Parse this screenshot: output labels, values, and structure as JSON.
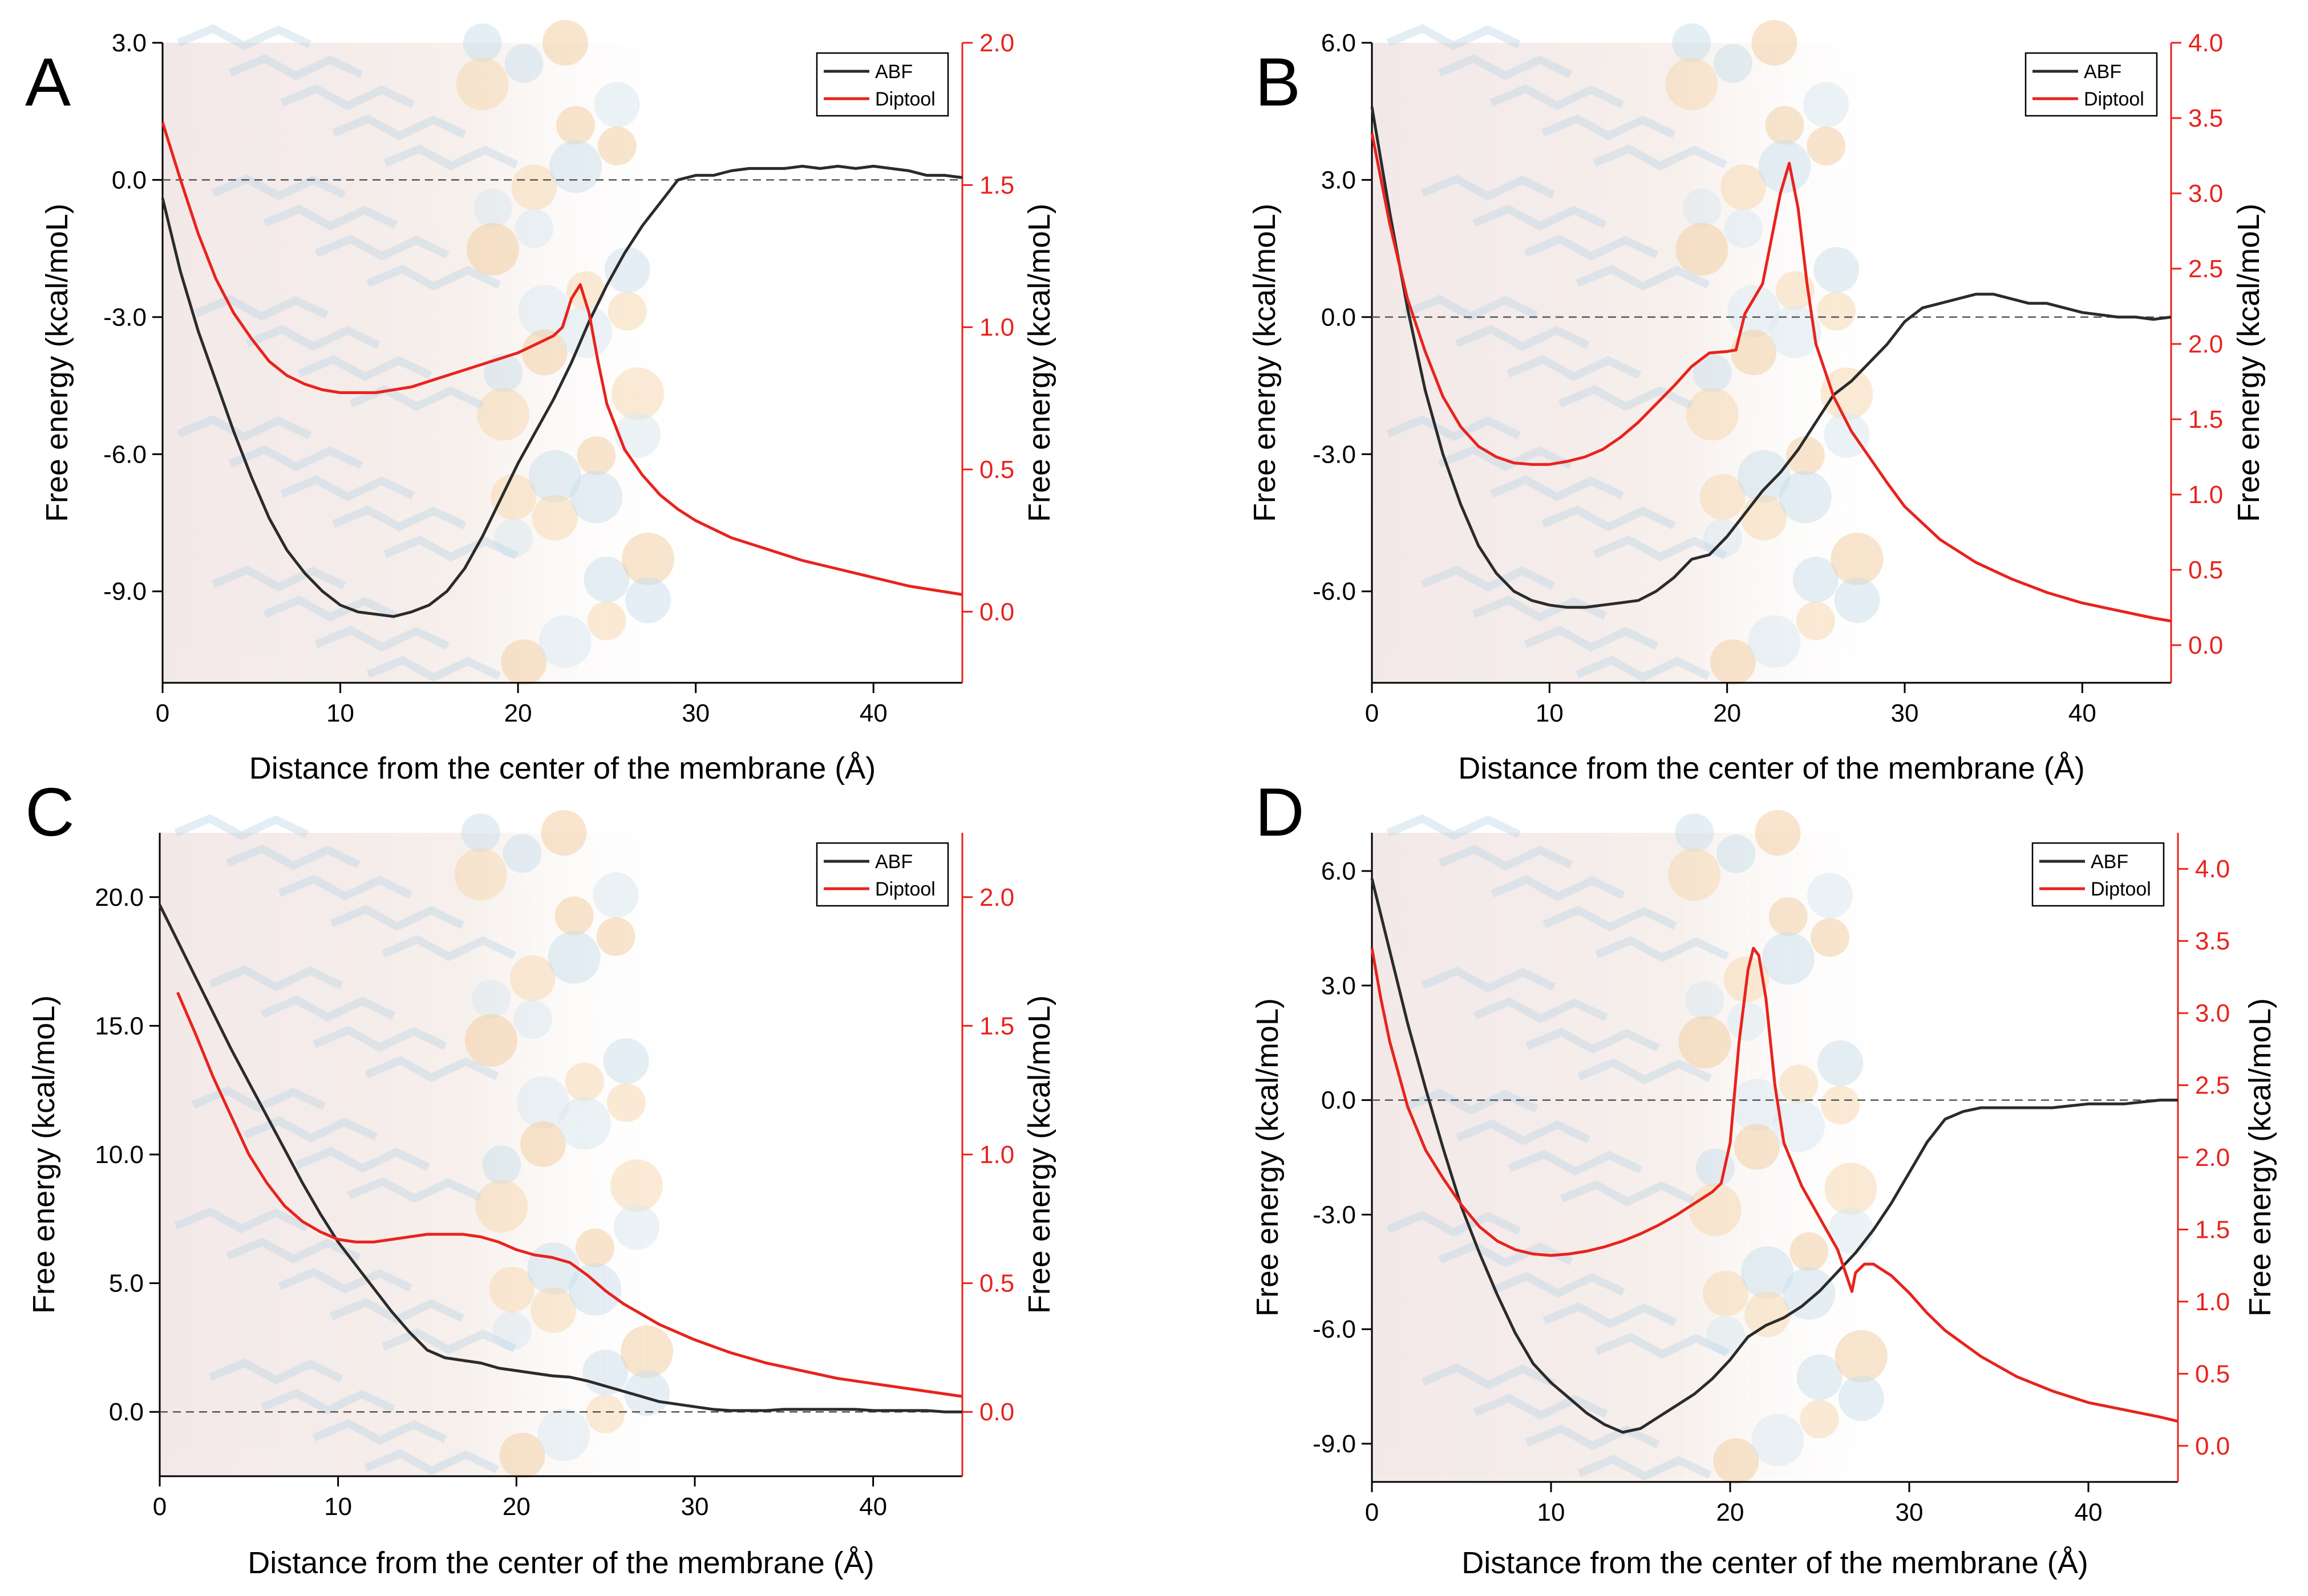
{
  "figure": {
    "colors": {
      "abf": "#2b2b2b",
      "diptool": "#e8231d",
      "zero_line": "#555555",
      "axis": "#000000",
      "right_axis": "#e8231d"
    }
  },
  "chart_data": [
    {
      "panel": "A",
      "type": "line",
      "xlabel": "Distance from the center of the membrane (Å)",
      "ylabel_left": "Free energy (kcal/moL)",
      "ylabel_right": "Free energy (kcal/moL)",
      "xlim": [
        0,
        45
      ],
      "ylim_left": [
        -11.0,
        3.0
      ],
      "ylim_right": [
        -0.25,
        2.0
      ],
      "xticks": [
        0,
        10,
        20,
        30,
        40
      ],
      "xtick_labels": [
        "0",
        "10",
        "20",
        "30",
        "40"
      ],
      "yticks_left": [
        3.0,
        0.0,
        -3.0,
        -6.0,
        -9.0
      ],
      "ytick_labels_left": [
        "3.0",
        "0.0",
        "-3.0",
        "-6.0",
        "-9.0"
      ],
      "yticks_right": [
        2.0,
        1.5,
        1.0,
        0.5,
        0.0
      ],
      "ytick_labels_right": [
        "2.0",
        "1.5",
        "1.0",
        "0.5",
        "0.0"
      ],
      "zero_line_axis": "left",
      "legend": {
        "position": "top-right",
        "entries": [
          "ABF",
          "Diptool"
        ]
      },
      "series": [
        {
          "name": "ABF",
          "axis": "left",
          "x": [
            0,
            1,
            2,
            3,
            4,
            5,
            6,
            7,
            8,
            9,
            10,
            11,
            12,
            13,
            14,
            15,
            16,
            17,
            18,
            19,
            20,
            21,
            22,
            23,
            24,
            25,
            26,
            27,
            28,
            29,
            30,
            31,
            32,
            33,
            34,
            35,
            36,
            37,
            38,
            39,
            40,
            41,
            42,
            43,
            44,
            45
          ],
          "y": [
            -0.4,
            -2.0,
            -3.3,
            -4.4,
            -5.5,
            -6.5,
            -7.4,
            -8.1,
            -8.6,
            -9.0,
            -9.3,
            -9.45,
            -9.5,
            -9.55,
            -9.45,
            -9.3,
            -9.0,
            -8.5,
            -7.8,
            -7.0,
            -6.2,
            -5.5,
            -4.8,
            -4.0,
            -3.1,
            -2.3,
            -1.6,
            -1.0,
            -0.5,
            0.0,
            0.1,
            0.1,
            0.2,
            0.25,
            0.25,
            0.25,
            0.3,
            0.25,
            0.3,
            0.25,
            0.3,
            0.25,
            0.2,
            0.1,
            0.1,
            0.05
          ]
        },
        {
          "name": "Diptool",
          "axis": "right",
          "x": [
            0,
            0.5,
            1,
            2,
            3,
            4,
            5,
            6,
            7,
            8,
            9,
            10,
            11,
            12,
            13,
            14,
            15,
            16,
            17,
            18,
            19,
            20,
            21,
            22,
            22.5,
            23,
            23.5,
            24,
            24.5,
            25,
            26,
            27,
            28,
            29,
            30,
            32,
            34,
            36,
            38,
            40,
            42,
            44,
            45
          ],
          "y": [
            1.72,
            1.62,
            1.52,
            1.33,
            1.17,
            1.05,
            0.96,
            0.88,
            0.83,
            0.8,
            0.78,
            0.77,
            0.77,
            0.77,
            0.78,
            0.79,
            0.81,
            0.83,
            0.85,
            0.87,
            0.89,
            0.91,
            0.94,
            0.97,
            1.0,
            1.1,
            1.15,
            1.05,
            0.88,
            0.73,
            0.57,
            0.48,
            0.41,
            0.36,
            0.32,
            0.26,
            0.22,
            0.18,
            0.15,
            0.12,
            0.09,
            0.07,
            0.06
          ]
        }
      ]
    },
    {
      "panel": "B",
      "type": "line",
      "xlabel": "Distance from the center of the membrane (Å)",
      "ylabel_left": "Free energy (kcal/moL)",
      "ylabel_right": "Free energy (kcal/moL)",
      "xlim": [
        0,
        45
      ],
      "ylim_left": [
        -8.0,
        6.0
      ],
      "ylim_right": [
        -0.25,
        4.0
      ],
      "xticks": [
        0,
        10,
        20,
        30,
        40
      ],
      "xtick_labels": [
        "0",
        "10",
        "20",
        "30",
        "40"
      ],
      "yticks_left": [
        6.0,
        3.0,
        0.0,
        -3.0,
        -6.0
      ],
      "ytick_labels_left": [
        "6.0",
        "3.0",
        "0.0",
        "-3.0",
        "-6.0"
      ],
      "yticks_right": [
        4.0,
        3.5,
        3.0,
        2.5,
        2.0,
        1.5,
        1.0,
        0.5,
        0.0
      ],
      "ytick_labels_right": [
        "4.0",
        "3.5",
        "3.0",
        "2.5",
        "2.0",
        "1.5",
        "1.0",
        "0.5",
        "0.0"
      ],
      "zero_line_axis": "left",
      "legend": {
        "position": "top-right",
        "entries": [
          "ABF",
          "Diptool"
        ]
      },
      "series": [
        {
          "name": "ABF",
          "axis": "left",
          "x": [
            0,
            1,
            2,
            3,
            4,
            5,
            6,
            7,
            8,
            9,
            10,
            11,
            12,
            13,
            14,
            15,
            16,
            17,
            18,
            19,
            20,
            21,
            22,
            23,
            24,
            25,
            26,
            27,
            28,
            29,
            30,
            31,
            32,
            33,
            34,
            35,
            36,
            37,
            38,
            39,
            40,
            41,
            42,
            43,
            44,
            45
          ],
          "y": [
            4.6,
            2.3,
            0.2,
            -1.6,
            -3.0,
            -4.1,
            -5.0,
            -5.6,
            -6.0,
            -6.2,
            -6.3,
            -6.35,
            -6.35,
            -6.3,
            -6.25,
            -6.2,
            -6.0,
            -5.7,
            -5.3,
            -5.2,
            -4.8,
            -4.3,
            -3.8,
            -3.4,
            -2.9,
            -2.3,
            -1.7,
            -1.4,
            -1.0,
            -0.6,
            -0.1,
            0.2,
            0.3,
            0.4,
            0.5,
            0.5,
            0.4,
            0.3,
            0.3,
            0.2,
            0.1,
            0.05,
            0.0,
            0.0,
            -0.05,
            0.0
          ]
        },
        {
          "name": "Diptool",
          "axis": "right",
          "x": [
            0,
            0.5,
            1,
            2,
            3,
            4,
            5,
            6,
            7,
            8,
            9,
            10,
            11,
            12,
            13,
            14,
            15,
            16,
            17,
            18,
            19,
            20,
            20.5,
            21,
            22,
            22.5,
            23,
            23.5,
            24,
            24.5,
            25,
            26,
            27,
            28,
            29,
            30,
            32,
            34,
            36,
            38,
            40,
            42,
            44,
            45
          ],
          "y": [
            3.4,
            3.1,
            2.8,
            2.3,
            1.95,
            1.65,
            1.45,
            1.32,
            1.25,
            1.21,
            1.2,
            1.2,
            1.22,
            1.25,
            1.3,
            1.38,
            1.48,
            1.6,
            1.72,
            1.85,
            1.94,
            1.95,
            1.96,
            2.2,
            2.4,
            2.7,
            3.0,
            3.2,
            2.9,
            2.4,
            2.0,
            1.65,
            1.42,
            1.25,
            1.08,
            0.92,
            0.7,
            0.55,
            0.44,
            0.35,
            0.28,
            0.23,
            0.18,
            0.16
          ]
        }
      ]
    },
    {
      "panel": "C",
      "type": "line",
      "xlabel": "Distance from the center of the membrane (Å)",
      "ylabel_left": "Free energy (kcal/moL)",
      "ylabel_right": "Free energy (kcal/moL)",
      "xlim": [
        0,
        45
      ],
      "ylim_left": [
        -2.5,
        22.5
      ],
      "ylim_right": [
        -0.25,
        2.25
      ],
      "xticks": [
        0,
        10,
        20,
        30,
        40
      ],
      "xtick_labels": [
        "0",
        "10",
        "20",
        "30",
        "40"
      ],
      "yticks_left": [
        20.0,
        15.0,
        10.0,
        5.0,
        0.0
      ],
      "ytick_labels_left": [
        "20.0",
        "15.0",
        "10.0",
        "5.0",
        "0.0"
      ],
      "yticks_right": [
        2.0,
        1.5,
        1.0,
        0.5,
        0.0
      ],
      "ytick_labels_right": [
        "2.0",
        "1.5",
        "1.0",
        "0.5",
        "0.0"
      ],
      "zero_line_axis": "left",
      "legend": {
        "position": "top-right",
        "entries": [
          "ABF",
          "Diptool"
        ]
      },
      "series": [
        {
          "name": "ABF",
          "axis": "left",
          "x": [
            0,
            1,
            2,
            3,
            4,
            5,
            6,
            7,
            8,
            9,
            10,
            11,
            12,
            13,
            14,
            15,
            16,
            17,
            18,
            19,
            20,
            21,
            22,
            23,
            24,
            25,
            26,
            27,
            28,
            29,
            30,
            31,
            32,
            33,
            34,
            35,
            36,
            37,
            38,
            39,
            40,
            41,
            42,
            43,
            44,
            45
          ],
          "y": [
            19.7,
            18.3,
            16.9,
            15.5,
            14.1,
            12.8,
            11.5,
            10.2,
            8.9,
            7.7,
            6.6,
            5.7,
            4.8,
            3.9,
            3.1,
            2.4,
            2.1,
            2.0,
            1.9,
            1.7,
            1.6,
            1.5,
            1.4,
            1.35,
            1.2,
            1.0,
            0.8,
            0.6,
            0.4,
            0.3,
            0.2,
            0.1,
            0.05,
            0.05,
            0.05,
            0.1,
            0.1,
            0.1,
            0.1,
            0.1,
            0.05,
            0.05,
            0.05,
            0.05,
            0.0,
            0.0
          ]
        },
        {
          "name": "Diptool",
          "axis": "right",
          "x": [
            1,
            2,
            3,
            4,
            5,
            6,
            7,
            8,
            9,
            10,
            11,
            12,
            13,
            14,
            15,
            16,
            17,
            18,
            19,
            20,
            21,
            22,
            23,
            24,
            25,
            26,
            27,
            28,
            29,
            30,
            32,
            34,
            36,
            38,
            40,
            42,
            44,
            45
          ],
          "y": [
            1.63,
            1.47,
            1.3,
            1.15,
            1.0,
            0.89,
            0.8,
            0.74,
            0.7,
            0.67,
            0.66,
            0.66,
            0.67,
            0.68,
            0.69,
            0.69,
            0.69,
            0.68,
            0.66,
            0.63,
            0.61,
            0.6,
            0.58,
            0.53,
            0.47,
            0.42,
            0.38,
            0.34,
            0.31,
            0.28,
            0.23,
            0.19,
            0.16,
            0.13,
            0.11,
            0.09,
            0.07,
            0.06
          ]
        }
      ]
    },
    {
      "panel": "D",
      "type": "line",
      "xlabel": "Distance from the center of the membrane (Å)",
      "ylabel_left": "Free energy (kcal/moL)",
      "ylabel_right": "Free energy (kcal/moL)",
      "xlim": [
        0,
        45
      ],
      "ylim_left": [
        -10.0,
        7.0
      ],
      "ylim_right": [
        -0.25,
        4.25
      ],
      "xticks": [
        0,
        10,
        20,
        30,
        40
      ],
      "xtick_labels": [
        "0",
        "10",
        "20",
        "30",
        "40"
      ],
      "yticks_left": [
        6.0,
        3.0,
        0.0,
        -3.0,
        -6.0,
        -9.0
      ],
      "ytick_labels_left": [
        "6.0",
        "3.0",
        "0.0",
        "-3.0",
        "-6.0",
        "-9.0"
      ],
      "yticks_right": [
        4.0,
        3.5,
        3.0,
        2.5,
        2.0,
        1.5,
        1.0,
        0.5,
        0.0
      ],
      "ytick_labels_right": [
        "4.0",
        "3.5",
        "3.0",
        "2.5",
        "2.0",
        "1.5",
        "1.0",
        "0.5",
        "0.0"
      ],
      "zero_line_axis": "left",
      "legend": {
        "position": "top-right",
        "entries": [
          "ABF",
          "Diptool"
        ]
      },
      "series": [
        {
          "name": "ABF",
          "axis": "left",
          "x": [
            0,
            1,
            2,
            3,
            4,
            5,
            6,
            7,
            8,
            9,
            10,
            11,
            12,
            13,
            14,
            15,
            16,
            17,
            18,
            19,
            20,
            21,
            22,
            23,
            24,
            25,
            26,
            27,
            28,
            29,
            30,
            31,
            32,
            33,
            34,
            35,
            36,
            37,
            38,
            39,
            40,
            41,
            42,
            43,
            44,
            45
          ],
          "y": [
            5.8,
            3.9,
            2.0,
            0.3,
            -1.3,
            -2.8,
            -4.0,
            -5.1,
            -6.1,
            -6.9,
            -7.4,
            -7.8,
            -8.2,
            -8.5,
            -8.7,
            -8.6,
            -8.3,
            -8.0,
            -7.7,
            -7.3,
            -6.8,
            -6.2,
            -5.9,
            -5.7,
            -5.4,
            -5.0,
            -4.5,
            -4.0,
            -3.4,
            -2.7,
            -1.9,
            -1.1,
            -0.5,
            -0.3,
            -0.2,
            -0.2,
            -0.2,
            -0.2,
            -0.2,
            -0.15,
            -0.1,
            -0.1,
            -0.1,
            -0.05,
            0.0,
            0.0
          ]
        },
        {
          "name": "Diptool",
          "axis": "right",
          "x": [
            0,
            0.5,
            1,
            2,
            3,
            4,
            5,
            6,
            7,
            8,
            9,
            10,
            11,
            12,
            13,
            14,
            15,
            16,
            17,
            18,
            19,
            19.5,
            20,
            20.5,
            21,
            21.3,
            21.6,
            22,
            22.5,
            23,
            24,
            25,
            26,
            26.5,
            26.8,
            27,
            27.5,
            28,
            29,
            30,
            31,
            32,
            34,
            36,
            38,
            40,
            42,
            44,
            45
          ],
          "y": [
            3.45,
            3.1,
            2.8,
            2.35,
            2.05,
            1.85,
            1.67,
            1.52,
            1.42,
            1.36,
            1.33,
            1.32,
            1.33,
            1.35,
            1.38,
            1.42,
            1.47,
            1.53,
            1.6,
            1.68,
            1.76,
            1.82,
            2.1,
            2.8,
            3.3,
            3.45,
            3.4,
            3.1,
            2.5,
            2.1,
            1.8,
            1.58,
            1.36,
            1.18,
            1.07,
            1.2,
            1.26,
            1.26,
            1.18,
            1.06,
            0.92,
            0.8,
            0.62,
            0.48,
            0.38,
            0.3,
            0.25,
            0.2,
            0.17
          ]
        }
      ]
    }
  ]
}
